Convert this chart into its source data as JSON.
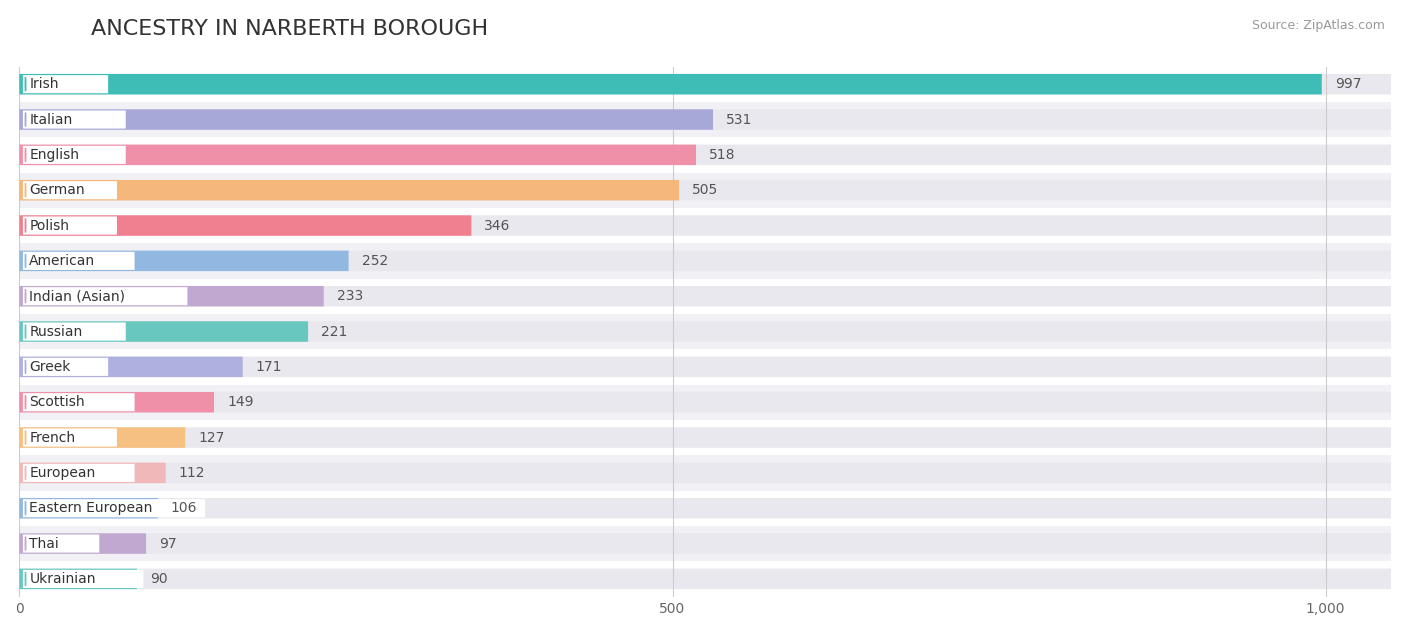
{
  "title": "ANCESTRY IN NARBERTH BOROUGH",
  "source": "Source: ZipAtlas.com",
  "categories": [
    "Irish",
    "Italian",
    "English",
    "German",
    "Polish",
    "American",
    "Indian (Asian)",
    "Russian",
    "Greek",
    "Scottish",
    "French",
    "European",
    "Eastern European",
    "Thai",
    "Ukrainian"
  ],
  "values": [
    997,
    531,
    518,
    505,
    346,
    252,
    233,
    221,
    171,
    149,
    127,
    112,
    106,
    97,
    90
  ],
  "bar_colors": [
    "#3dbdb5",
    "#a8a8d8",
    "#f090a8",
    "#f5b87a",
    "#f08090",
    "#90b8e0",
    "#c0a8d0",
    "#68c8c0",
    "#b0b0e0",
    "#f090a8",
    "#f5c080",
    "#f0b8b8",
    "#90b8e0",
    "#c0a8d0",
    "#68c8c0"
  ],
  "circle_colors": [
    "#3dbdb5",
    "#a8a8d8",
    "#f090a8",
    "#f5b87a",
    "#f08090",
    "#90b8e0",
    "#c0a8d0",
    "#68c8c0",
    "#b0b0e0",
    "#f090a8",
    "#f5c080",
    "#f0b8b8",
    "#90b8e0",
    "#c0a8d0",
    "#68c8c0"
  ],
  "track_color": "#e8e8ee",
  "row_bg_colors": [
    "#ffffff",
    "#f0f0f5"
  ],
  "xlim_max": 1050,
  "xtick_labels": [
    "0",
    "500",
    "1,000"
  ],
  "xtick_vals": [
    0,
    500,
    1000
  ],
  "background_color": "#ffffff",
  "title_fontsize": 16,
  "label_fontsize": 10,
  "value_fontsize": 10
}
